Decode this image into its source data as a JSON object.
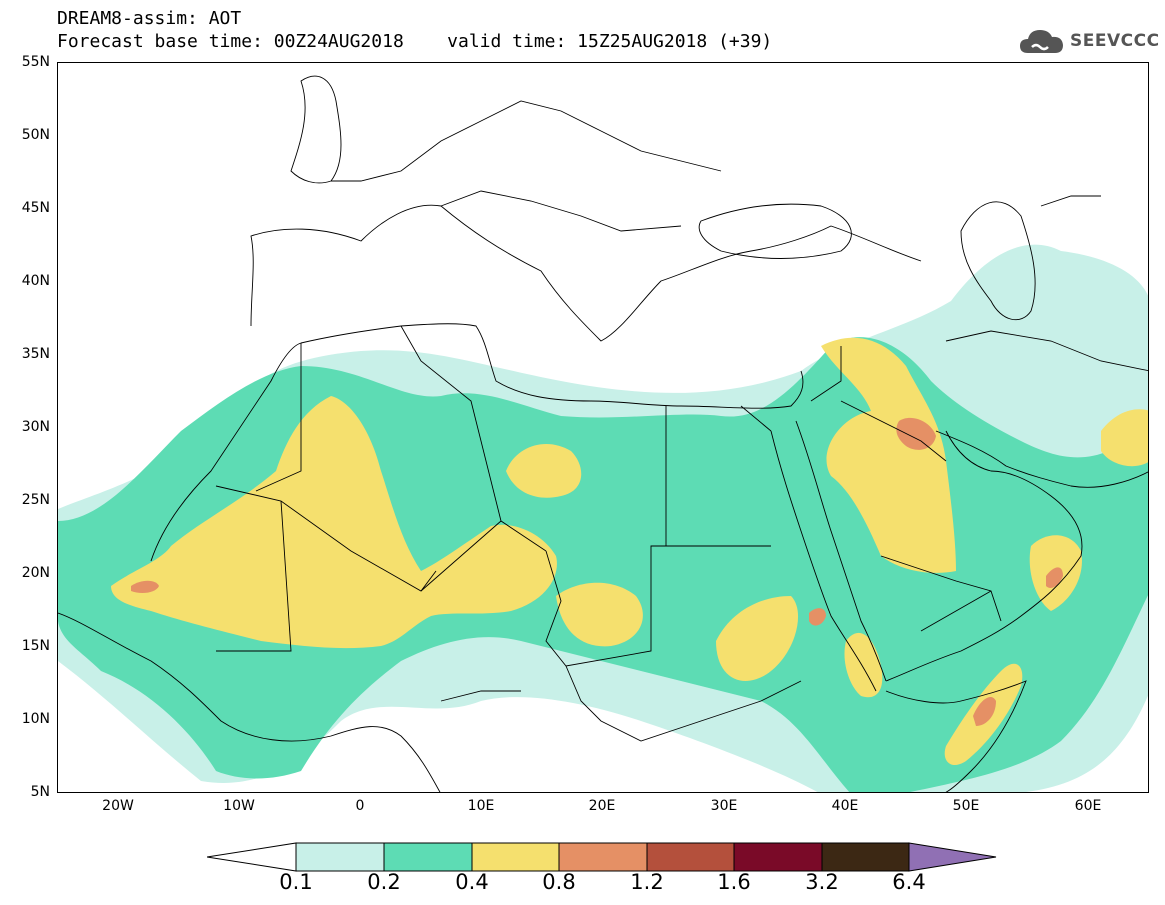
{
  "header": {
    "title_line1": "DREAM8-assim: AOT",
    "base_time_label": "Forecast base time: 00Z24AUG2018",
    "valid_time_label": "valid time: 15Z25AUG2018 (+39)"
  },
  "logo": {
    "text": "SEEVCCC",
    "icon": "cloud-icon"
  },
  "map": {
    "projection": "lat-lon",
    "lon_range": [
      -25,
      65
    ],
    "lat_range": [
      5,
      55
    ],
    "lat_ticks": [
      "55N",
      "50N",
      "45N",
      "40N",
      "35N",
      "30N",
      "25N",
      "20N",
      "15N",
      "10N",
      "5N"
    ],
    "lon_ticks": [
      "20W",
      "10W",
      "0",
      "10E",
      "20E",
      "30E",
      "40E",
      "50E",
      "60E"
    ],
    "variable": "Aerosol Optical Thickness"
  },
  "colorbar": {
    "levels": [
      "0.1",
      "0.2",
      "0.4",
      "0.8",
      "1.2",
      "1.6",
      "3.2",
      "6.4"
    ],
    "colors": [
      "#c8f0e8",
      "#5ddcb4",
      "#f5e06e",
      "#e59065",
      "#b4503c",
      "#7a0a28",
      "#3c2814",
      "#9070b4"
    ],
    "below_color": "#ffffff",
    "above_color": "#9070b4"
  }
}
